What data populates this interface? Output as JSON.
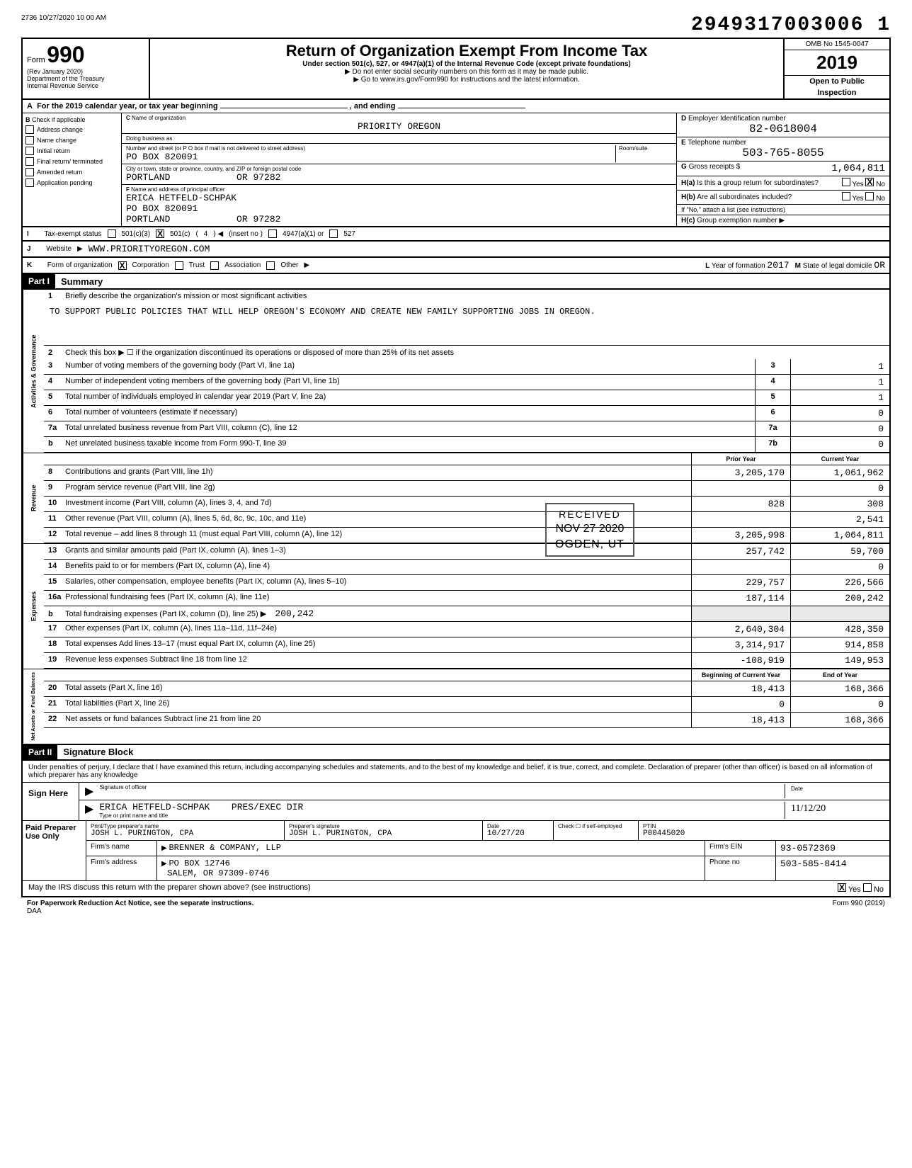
{
  "header": {
    "timestamp": "2736 10/27/2020 10 00 AM",
    "doc_number": "2949317003006 1",
    "form_number": "990",
    "form_label": "Form",
    "revision": "(Rev  January 2020)",
    "dept": "Department of the Treasury",
    "irs": "Internal Revenue Service",
    "title": "Return of Organization Exempt From Income Tax",
    "subtitle": "Under section 501(c), 527, or 4947(a)(1) of the Internal Revenue Code (except private foundations)",
    "note1": "Do not enter social security numbers on this form as it may be made public.",
    "note2": "Go to www.irs.gov/Form990 for instructions and the latest information.",
    "omb": "OMB No 1545-0047",
    "year": "2019",
    "open_public": "Open to Public",
    "inspection": "Inspection"
  },
  "section_a": {
    "text": "For the 2019 calendar year, or tax year beginning",
    "ending": ", and ending"
  },
  "section_b": {
    "label": "Check if applicable",
    "options": [
      "Address change",
      "Name change",
      "Initial return",
      "Final return/ terminated",
      "Amended return",
      "Application pending"
    ]
  },
  "section_c": {
    "name_label": "Name of organization",
    "org_name": "PRIORITY OREGON",
    "dba_label": "Doing business as",
    "dba": "",
    "addr_label": "Number and street (or P O box if mail is not delivered to street address)",
    "address": "PO BOX 820091",
    "room_label": "Room/suite",
    "city_label": "City or town, state or province, country, and ZIP or foreign postal code",
    "city": "PORTLAND",
    "state_zip": "OR 97282",
    "officer_label": "Name and address of principal officer",
    "officer_name": "ERICA HETFELD-SCHPAK",
    "officer_addr": "PO BOX 820091",
    "officer_city": "PORTLAND",
    "officer_state_zip": "OR  97282"
  },
  "section_d": {
    "ein_label": "Employer Identification number",
    "ein": "82-0618004",
    "phone_label": "Telephone number",
    "phone": "503-765-8055",
    "gross_label": "Gross receipts $",
    "gross": "1,064,811",
    "h_a": "Is this a group return for subordinates?",
    "h_b": "Are all subordinates included?",
    "h_note": "If \"No,\" attach a list (see instructions)",
    "h_c": "Group exemption number",
    "yes": "Yes",
    "no": "No"
  },
  "status": {
    "i_label": "Tax-exempt status",
    "c3": "501(c)(3)",
    "c": "501(c)",
    "c_num": "4",
    "insert": "(insert no )",
    "a1": "4947(a)(1) or",
    "527": "527",
    "j_label": "Website",
    "website": "WWW.PRIORITYOREGON.COM",
    "k_label": "Form of organization",
    "corp": "Corporation",
    "trust": "Trust",
    "assoc": "Association",
    "other": "Other",
    "l_label": "Year of formation",
    "year_formed": "2017",
    "m_label": "State of legal domicile",
    "state": "OR"
  },
  "part1": {
    "label": "Part I",
    "title": "Summary",
    "line1_label": "Briefly describe the organization's mission or most significant activities",
    "mission": "TO SUPPORT PUBLIC POLICIES THAT WILL HELP OREGON'S ECONOMY AND CREATE NEW FAMILY SUPPORTING JOBS IN OREGON.",
    "line2": "Check this box ▶ ☐ if the organization discontinued its operations or disposed of more than 25% of its net assets",
    "lines": [
      {
        "num": "3",
        "text": "Number of voting members of the governing body (Part VI, line 1a)",
        "col": "3",
        "val": "1"
      },
      {
        "num": "4",
        "text": "Number of independent voting members of the governing body (Part VI, line 1b)",
        "col": "4",
        "val": "1"
      },
      {
        "num": "5",
        "text": "Total number of individuals employed in calendar year 2019 (Part V, line 2a)",
        "col": "5",
        "val": "1"
      },
      {
        "num": "6",
        "text": "Total number of volunteers (estimate if necessary)",
        "col": "6",
        "val": "0"
      },
      {
        "num": "7a",
        "text": "Total unrelated business revenue from Part VIII, column (C), line 12",
        "col": "7a",
        "val": "0"
      },
      {
        "num": "",
        "text": "Net unrelated business taxable income from Form 990-T, line 39",
        "col": "7b",
        "val": "0",
        "prefix": "b"
      }
    ],
    "col_headers": {
      "prior": "Prior Year",
      "current": "Current Year"
    },
    "revenue_label": "Revenue",
    "revenue": [
      {
        "num": "8",
        "text": "Contributions and grants (Part VIII, line 1h)",
        "prior": "3,205,170",
        "current": "1,061,962"
      },
      {
        "num": "9",
        "text": "Program service revenue (Part VIII, line 2g)",
        "prior": "",
        "current": "0"
      },
      {
        "num": "10",
        "text": "Investment income (Part VIII, column (A), lines 3, 4, and 7d)",
        "prior": "828",
        "current": "308"
      },
      {
        "num": "11",
        "text": "Other revenue (Part VIII, column (A), lines 5, 6d, 8c, 9c, 10c, and 11e)",
        "prior": "",
        "current": "2,541"
      },
      {
        "num": "12",
        "text": "Total revenue – add lines 8 through 11 (must equal Part VIII, column (A), line 12)",
        "prior": "3,205,998",
        "current": "1,064,811"
      }
    ],
    "expenses_label": "Expenses",
    "expenses": [
      {
        "num": "13",
        "text": "Grants and similar amounts paid (Part IX, column (A), lines 1–3)",
        "prior": "257,742",
        "current": "59,700"
      },
      {
        "num": "14",
        "text": "Benefits paid to or for members (Part IX, column (A), line 4)",
        "prior": "",
        "current": "0"
      },
      {
        "num": "15",
        "text": "Salaries, other compensation, employee benefits (Part IX, column (A), lines 5–10)",
        "prior": "229,757",
        "current": "226,566"
      },
      {
        "num": "16a",
        "text": "Professional fundraising fees (Part IX, column (A), line 11e)",
        "prior": "187,114",
        "current": "200,242"
      },
      {
        "num": "b",
        "text": "Total fundraising expenses (Part IX, column (D), line 25) ▶",
        "inline_val": "200,242",
        "prior": "",
        "current": ""
      },
      {
        "num": "17",
        "text": "Other expenses (Part IX, column (A), lines 11a–11d, 11f–24e)",
        "prior": "2,640,304",
        "current": "428,350"
      },
      {
        "num": "18",
        "text": "Total expenses  Add lines 13–17 (must equal Part IX, column (A), line 25)",
        "prior": "3,314,917",
        "current": "914,858"
      },
      {
        "num": "19",
        "text": "Revenue less expenses  Subtract line 18 from line 12",
        "prior": "-108,919",
        "current": "149,953"
      }
    ],
    "net_label": "Net Assets or Fund Balances",
    "net_headers": {
      "begin": "Beginning of Current Year",
      "end": "End of Year"
    },
    "net": [
      {
        "num": "20",
        "text": "Total assets (Part X, line 16)",
        "prior": "18,413",
        "current": "168,366"
      },
      {
        "num": "21",
        "text": "Total liabilities (Part X, line 26)",
        "prior": "0",
        "current": "0"
      },
      {
        "num": "22",
        "text": "Net assets or fund balances  Subtract line 21 from line 20",
        "prior": "18,413",
        "current": "168,366"
      }
    ],
    "gov_label": "Activities & Governance"
  },
  "part2": {
    "label": "Part II",
    "title": "Signature Block",
    "declaration": "Under penalties of perjury, I declare that I have examined this return, including accompanying schedules and statements, and to the best of my knowledge and belief, it is true, correct, and complete. Declaration of preparer (other than officer) is based on all information of which preparer has any knowledge",
    "sign_here": "Sign Here",
    "sig_officer_label": "Signature of officer",
    "date_label": "Date",
    "type_name_label": "Type or print name and title",
    "officer_name": "ERICA HETFELD-SCHPAK",
    "officer_title": "PRES/EXEC DIR",
    "sig_date": "11/12/20",
    "paid_label": "Paid Preparer Use Only",
    "prep_name_label": "Print/Type preparer's name",
    "prep_name": "JOSH L. PURINGTON, CPA",
    "prep_sig_label": "Preparer's signature",
    "prep_sig": "JOSH L. PURINGTON, CPA",
    "prep_date": "10/27/20",
    "check_label": "Check ☐ if self-employed",
    "ptin_label": "PTIN",
    "ptin": "P00445020",
    "firm_name_label": "Firm's name",
    "firm_name": "BRENNER & COMPANY, LLP",
    "firm_ein_label": "Firm's EIN",
    "firm_ein": "93-0572369",
    "firm_addr_label": "Firm's address",
    "firm_addr1": "PO BOX 12746",
    "firm_addr2": "SALEM, OR  97309-0746",
    "firm_phone_label": "Phone no",
    "firm_phone": "503-585-8414",
    "discuss": "May the IRS discuss this return with the preparer shown above? (see instructions)",
    "discuss_yes": "Yes",
    "discuss_no": "No"
  },
  "footer": {
    "paperwork": "For Paperwork Reduction Act Notice, see the separate instructions.",
    "daa": "DAA",
    "form_ref": "Form 990 (2019)"
  },
  "stamps": {
    "received": "RECEIVED",
    "received_date": "NOV 27 2020",
    "ogden": "OGDEN, UT"
  }
}
